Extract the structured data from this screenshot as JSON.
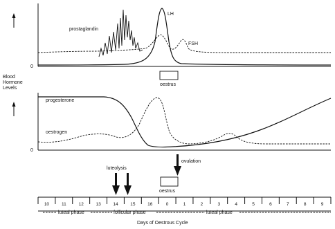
{
  "y_axis_label": [
    "Blood",
    "Hormone",
    "Levels"
  ],
  "top_panel": {
    "zero_label": "0",
    "curves": {
      "prostaglandin": "prostaglandin",
      "lh": "LH",
      "fsh": "FSH"
    },
    "oestrus_label": "oestrus"
  },
  "middle_panel": {
    "zero_label": "0",
    "curves": {
      "progesterone": "progesterone",
      "oestrogen": "oestrogen"
    }
  },
  "events": {
    "luteolysis": "luteolysis",
    "ovulation": "ovulation",
    "oestrus": "oestrus"
  },
  "days": [
    "10",
    "11",
    "12",
    "13",
    "14",
    "15",
    "16",
    "0",
    "1",
    "2",
    "3",
    "4",
    "5",
    "6",
    "7",
    "8",
    "9"
  ],
  "phases": {
    "luteal_left": "luteal phase",
    "follicular": "follicular phase",
    "luteal_right": "luteal phase"
  },
  "x_axis_title": "Days of Oestrous Cycle"
}
